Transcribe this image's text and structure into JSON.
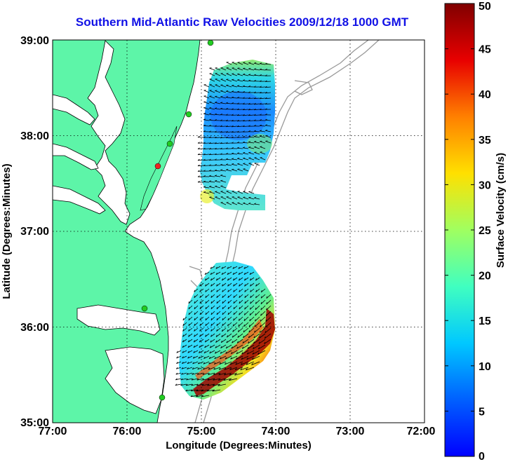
{
  "title": "Southern Mid-Atlantic Raw Velocities 2009/12/18 1000 GMT",
  "xlabel": "Longitude (Degrees:Minutes)",
  "ylabel": "Latitude (Degrees:Minutes)",
  "colorbar_label": "Surface Velocity (cm/s)",
  "colors": {
    "land": "#5df5a8",
    "title": "#1010e6",
    "site_marker": "#22cc22",
    "site_marker_active": "#ee2222"
  },
  "chart_data": {
    "type": "map",
    "lon_range": [
      -77,
      -72
    ],
    "lat_range": [
      35,
      39
    ],
    "x_ticks": [
      "77:00",
      "76:00",
      "75:00",
      "74:00",
      "73:00",
      "72:00"
    ],
    "y_ticks": [
      "35:00",
      "36:00",
      "37:00",
      "38:00",
      "39:00"
    ],
    "grid": true,
    "colorbar": {
      "range": [
        0,
        50
      ],
      "ticks": [
        "0",
        "5",
        "10",
        "15",
        "20",
        "25",
        "30",
        "35",
        "40",
        "45",
        "50"
      ],
      "colormap": "jet"
    },
    "velocity_regions": [
      {
        "name": "north",
        "lon": [
          -75.1,
          -74.05
        ],
        "lat": [
          37.5,
          38.85
        ],
        "typical_speed": 10
      },
      {
        "name": "south",
        "lon": [
          -75.3,
          -74.1
        ],
        "lat": [
          35.2,
          36.7
        ],
        "typical_speed": 15,
        "max_speed": 50
      }
    ]
  }
}
